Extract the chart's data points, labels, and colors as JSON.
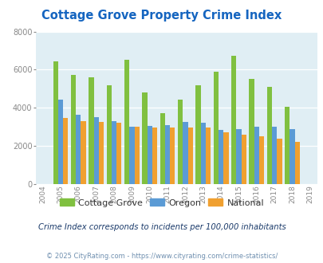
{
  "title": "Cottage Grove Property Crime Index",
  "years": [
    2004,
    2005,
    2006,
    2007,
    2008,
    2009,
    2010,
    2011,
    2012,
    2013,
    2014,
    2015,
    2016,
    2017,
    2018,
    2019
  ],
  "cottage_grove": [
    null,
    6450,
    5720,
    5580,
    5200,
    6500,
    4800,
    3700,
    4420,
    5200,
    5900,
    6750,
    5500,
    5100,
    4050,
    null
  ],
  "oregon": [
    null,
    4420,
    3620,
    3500,
    3300,
    3000,
    3050,
    3100,
    3270,
    3200,
    2850,
    2900,
    3000,
    3000,
    2900,
    null
  ],
  "national": [
    null,
    3450,
    3300,
    3250,
    3200,
    3030,
    2960,
    2950,
    2960,
    2960,
    2720,
    2600,
    2500,
    2370,
    2220,
    null
  ],
  "cottage_grove_color": "#80c040",
  "oregon_color": "#5b9bd5",
  "national_color": "#f0a030",
  "bg_color": "#e0eef4",
  "fig_bg_color": "#ffffff",
  "ylim": [
    0,
    8000
  ],
  "yticks": [
    0,
    2000,
    4000,
    6000,
    8000
  ],
  "bar_width": 0.28,
  "title_color": "#1565c0",
  "subtitle": "Crime Index corresponds to incidents per 100,000 inhabitants",
  "subtitle_color": "#1a3a6a",
  "footer": "© 2025 CityRating.com - https://www.cityrating.com/crime-statistics/",
  "footer_color": "#7090b0",
  "tick_color": "#888888",
  "legend_labels": [
    "Cottage Grove",
    "Oregon",
    "National"
  ],
  "legend_text_color": "#333333"
}
